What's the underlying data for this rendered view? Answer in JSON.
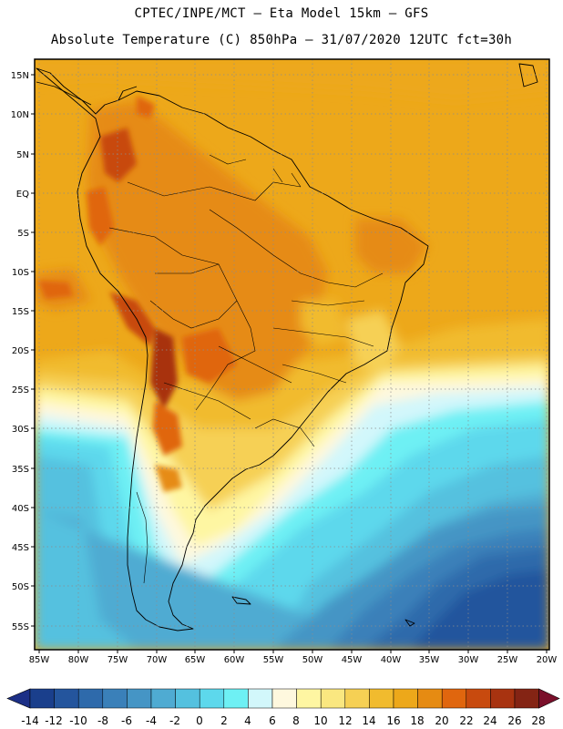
{
  "header": {
    "line1": "CPTEC/INPE/MCT –  Eta Model 15km – GFS",
    "line2": "Absolute Temperature (C) 850hPa – 31/07/2020 12UTC fct=30h"
  },
  "axes": {
    "lat_labels": [
      "15N",
      "10N",
      "5N",
      "EQ",
      "5S",
      "10S",
      "15S",
      "20S",
      "25S",
      "30S",
      "35S",
      "40S",
      "45S",
      "50S",
      "55S"
    ],
    "lon_labels": [
      "85W",
      "80W",
      "75W",
      "70W",
      "65W",
      "60W",
      "55W",
      "50W",
      "45W",
      "40W",
      "35W",
      "30W",
      "25W",
      "20W"
    ]
  },
  "colorbar": {
    "labels": [
      "-14",
      "-12",
      "-10",
      "-8",
      "-6",
      "-4",
      "-2",
      "0",
      "2",
      "4",
      "6",
      "8",
      "10",
      "12",
      "14",
      "16",
      "18",
      "20",
      "22",
      "24",
      "26",
      "28"
    ],
    "colors": [
      "#1a3f8c",
      "#24559d",
      "#2e6aab",
      "#3a80b9",
      "#4595c5",
      "#4fabd2",
      "#54c1df",
      "#5dd8ec",
      "#6ef0f4",
      "#d2f7fb",
      "#fef8de",
      "#fef6a2",
      "#fae780",
      "#f6d054",
      "#f1bb2e",
      "#eda81a",
      "#e68b12",
      "#e0660e",
      "#c84a0e",
      "#a83310",
      "#842414"
    ],
    "under_color": "#1c2f86",
    "over_color": "#7a0f2a"
  }
}
